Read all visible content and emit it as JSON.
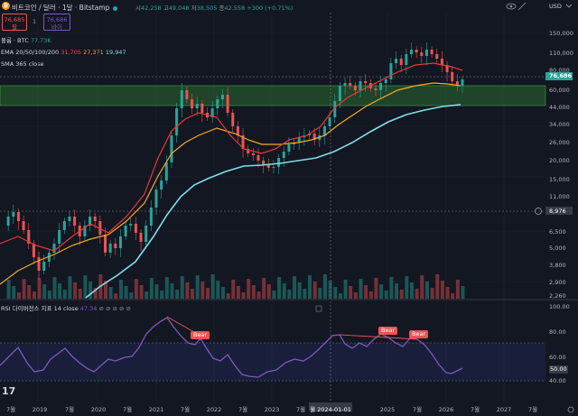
{
  "header": {
    "title": "비트코인 / 달러 · 1달 · Bitstamp",
    "ohlc": {
      "open_label": "시",
      "open": "42,258",
      "high_label": "고",
      "high": "49,048",
      "low_label": "저",
      "low": "38,505",
      "close_label": "종",
      "close": "42,558",
      "change": "+300 (+0.71%)"
    },
    "currency": "USD",
    "sell_price": "76,685",
    "sell_label": "팔",
    "buy_price": "76,686",
    "buy_label": "바이",
    "spread": "1",
    "icons": [
      "eye-icon",
      "settings-icon",
      "more-icon"
    ]
  },
  "indicators": {
    "volume": {
      "label": "볼륨 · BTC",
      "value": "77.73K"
    },
    "ema": {
      "label": "EMA 20/50/100/200",
      "v20": "31,705",
      "v50": "27,371",
      "v100": "19,947"
    },
    "sma": {
      "label": "SMA 365 close"
    },
    "rsi": {
      "label": "RSI 다이버전스 지표 14 close",
      "value": "47.34"
    }
  },
  "price_axis": {
    "labels": [
      "150,000",
      "110,000",
      "80,000",
      "60,000",
      "44,000",
      "34,000",
      "26,000",
      "20,000",
      "15,000",
      "11,000",
      "6,500",
      "5,000",
      "3,800",
      "2,900",
      "2,260"
    ],
    "current_price": "76,686",
    "crosshair_price": "8,976"
  },
  "rsi_axis": {
    "labels": [
      "100.00",
      "80.00",
      "60.00",
      "40.00"
    ],
    "current": "50.00"
  },
  "time_axis": {
    "labels": [
      "7월",
      "2019",
      "7월",
      "2020",
      "7월",
      "2021",
      "7월",
      "2022",
      "7월",
      "2023",
      "7월",
      "2025",
      "7월",
      "2026",
      "7월",
      "2027",
      "7월"
    ],
    "crosshair_date": "월 2024-01-01"
  },
  "annotations": {
    "bear1": "Bear",
    "bear2": "Bear",
    "bear3": "Bear"
  },
  "logo": "17",
  "colors": {
    "bg": "#131722",
    "up": "#26a69a",
    "down": "#ef5350",
    "ema20": "#e53935",
    "ema50": "#f9a825",
    "sma365": "#80deea",
    "rsi": "#7e57c2",
    "zone": "#2e7d32"
  }
}
